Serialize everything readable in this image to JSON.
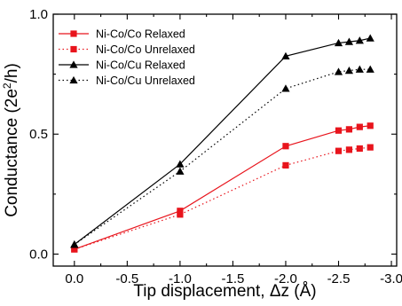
{
  "chart_data": {
    "type": "line",
    "title": "",
    "xlabel": "Tip displacement, Δz (Å)",
    "ylabel_main": "Conductance (2e",
    "ylabel_sup": "2",
    "ylabel_tail": "/h)",
    "xlim": [
      0.2,
      -3.05
    ],
    "ylim": [
      -0.05,
      1.0
    ],
    "x_ticks": [
      0.0,
      -0.5,
      -1.0,
      -1.5,
      -2.0,
      -2.5,
      -3.0
    ],
    "x_tick_labels": [
      "0.0",
      "-0.5",
      "-1.0",
      "-1.5",
      "-2.0",
      "-2.5",
      "-3.0"
    ],
    "y_ticks": [
      0.0,
      0.5,
      1.0
    ],
    "y_tick_labels": [
      "0.0",
      "0.5",
      "1.0"
    ],
    "grid": false,
    "legend_position": "top-left",
    "series": [
      {
        "name": "Ni-Co/Co Relaxed",
        "color": "#e8141c",
        "marker": "square",
        "dash": "solid",
        "x": [
          0.0,
          -1.0,
          -2.0,
          -2.5,
          -2.6,
          -2.7,
          -2.8
        ],
        "y": [
          0.02,
          0.18,
          0.45,
          0.515,
          0.52,
          0.53,
          0.535
        ]
      },
      {
        "name": "Ni-Co/Co Unrelaxed",
        "color": "#e8141c",
        "marker": "square",
        "dash": "dotted",
        "x": [
          0.0,
          -1.0,
          -2.0,
          -2.5,
          -2.6,
          -2.7,
          -2.8
        ],
        "y": [
          0.02,
          0.165,
          0.37,
          0.43,
          0.435,
          0.44,
          0.445
        ]
      },
      {
        "name": "Ni-Co/Cu Relaxed",
        "color": "#000000",
        "marker": "triangle",
        "dash": "solid",
        "x": [
          0.0,
          -1.0,
          -2.0,
          -2.5,
          -2.6,
          -2.7,
          -2.8
        ],
        "y": [
          0.04,
          0.375,
          0.825,
          0.88,
          0.885,
          0.89,
          0.9
        ]
      },
      {
        "name": "Ni-Co/Cu Unrelaxed",
        "color": "#000000",
        "marker": "triangle",
        "dash": "dotted",
        "x": [
          0.0,
          -1.0,
          -2.0,
          -2.5,
          -2.6,
          -2.7,
          -2.8
        ],
        "y": [
          0.04,
          0.345,
          0.69,
          0.76,
          0.765,
          0.77,
          0.77
        ]
      }
    ]
  }
}
